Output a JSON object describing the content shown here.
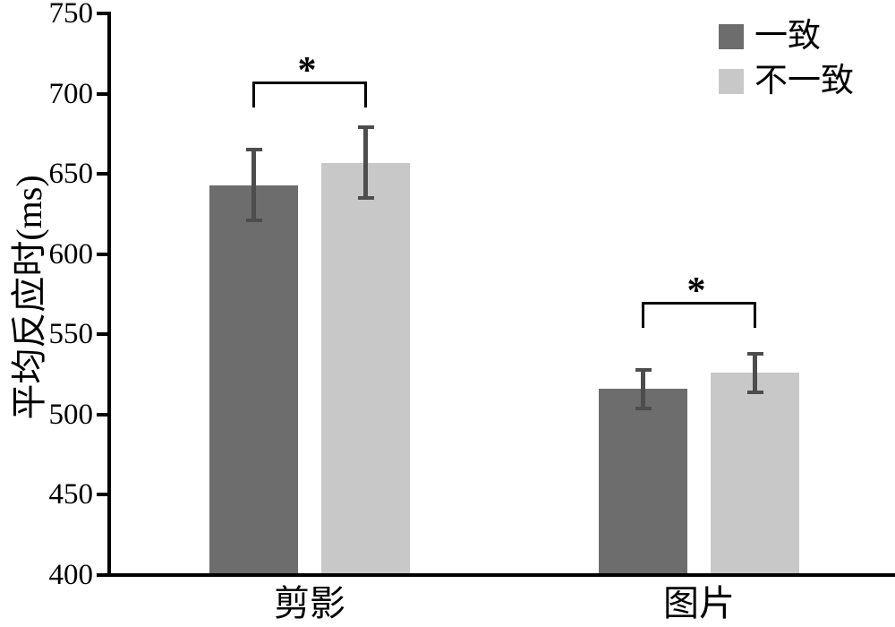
{
  "chart_data": {
    "type": "bar",
    "title": "",
    "ylabel": "平均反应时(ms)",
    "xlabel": "",
    "ylim": [
      400,
      750
    ],
    "ytick_step": 50,
    "grid": false,
    "legend_position": "top-right",
    "categories": [
      "剪影",
      "图片"
    ],
    "series": [
      {
        "name": "一致",
        "color": "#6d6d6d",
        "values": [
          643,
          516
        ],
        "errors": [
          22,
          12
        ]
      },
      {
        "name": "不一致",
        "color": "#c8c8c8",
        "values": [
          657,
          526
        ],
        "errors": [
          22,
          12
        ]
      }
    ],
    "error_bar_color": "#4d4d4d",
    "axis_color": "#000000",
    "significance_markers": [
      {
        "category_index": 0,
        "label": "*"
      },
      {
        "category_index": 1,
        "label": "*"
      }
    ]
  }
}
